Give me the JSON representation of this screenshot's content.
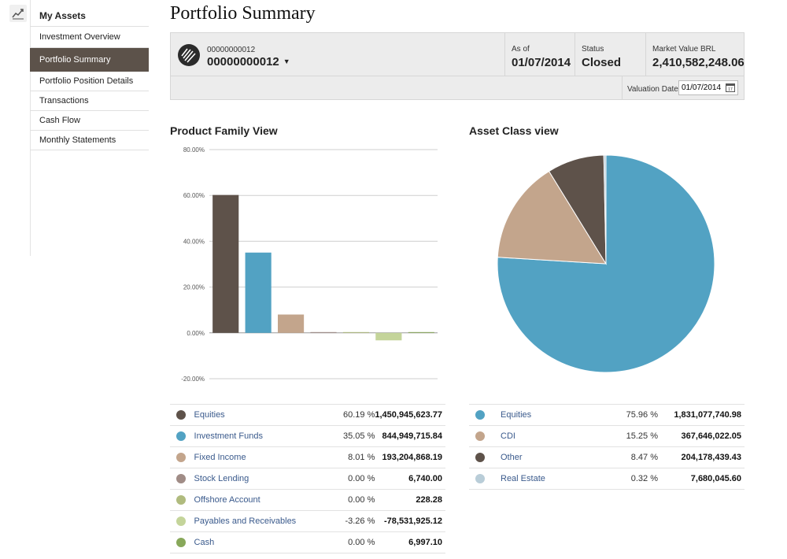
{
  "sidebar": {
    "icon": "chart-icon",
    "heading": "My Assets",
    "items": [
      {
        "label": "Investment Overview"
      },
      {
        "label": "Portfolio Summary",
        "active": true
      },
      {
        "label": "Portfolio Position Details"
      },
      {
        "label": "Transactions"
      },
      {
        "label": "Cash Flow"
      },
      {
        "label": "Monthly Statements"
      }
    ]
  },
  "page": {
    "title": "Portfolio Summary"
  },
  "account": {
    "number_small": "00000000012",
    "number": "00000000012",
    "as_of_label": "As of",
    "as_of": "01/07/2014",
    "status_label": "Status",
    "status": "Closed",
    "market_value_label": "Market Value BRL",
    "market_value": "2,410,582,248.06",
    "valuation_label": "Valuation Date",
    "valuation_date": "01/07/2014"
  },
  "product_view": {
    "title": "Product Family View",
    "rows": [
      {
        "name": "Equities",
        "pct": "60.19 %",
        "value": "1,450,945,623.77",
        "color": "#5e524a"
      },
      {
        "name": "Investment Funds",
        "pct": "35.05 %",
        "value": "844,949,715.84",
        "color": "#52a2c3"
      },
      {
        "name": "Fixed Income",
        "pct": "8.01 %",
        "value": "193,204,868.19",
        "color": "#c3a58c"
      },
      {
        "name": "Stock Lending",
        "pct": "0.00 %",
        "value": "6,740.00",
        "color": "#a08c86"
      },
      {
        "name": "Offshore Account",
        "pct": "0.00 %",
        "value": "228.28",
        "color": "#b0bb7e"
      },
      {
        "name": "Payables and Receivables",
        "pct": "-3.26 %",
        "value": "-78,531,925.12",
        "color": "#c4d49a"
      },
      {
        "name": "Cash",
        "pct": "0.00 %",
        "value": "6,997.10",
        "color": "#88a85a"
      }
    ]
  },
  "asset_view": {
    "title": "Asset Class view",
    "rows": [
      {
        "name": "Equities",
        "pct": "75.96 %",
        "value": "1,831,077,740.98",
        "color": "#52a2c3"
      },
      {
        "name": "CDI",
        "pct": "15.25 %",
        "value": "367,646,022.05",
        "color": "#c3a58c"
      },
      {
        "name": "Other",
        "pct": "8.47 %",
        "value": "204,178,439.43",
        "color": "#5e524a"
      },
      {
        "name": "Real Estate",
        "pct": "0.32 %",
        "value": "7,680,045.60",
        "color": "#b9cdd8"
      }
    ]
  },
  "chart_data": [
    {
      "type": "bar",
      "title": "Product Family View",
      "categories": [
        "Equities",
        "Investment Funds",
        "Fixed Income",
        "Stock Lending",
        "Offshore Account",
        "Payables and Receivables",
        "Cash"
      ],
      "values": [
        60.19,
        35.05,
        8.01,
        0.0,
        0.0,
        -3.26,
        0.0
      ],
      "colors": [
        "#5e524a",
        "#52a2c3",
        "#c3a58c",
        "#a08c86",
        "#b0bb7e",
        "#c4d49a",
        "#88a85a"
      ],
      "ylim": [
        -20,
        80
      ],
      "yticks": [
        80,
        60,
        40,
        20,
        0,
        -20
      ],
      "ytick_labels": [
        "80.00%",
        "60.00%",
        "40.00%",
        "20.00%",
        "0.00%",
        "-20.00%"
      ],
      "grid": true
    },
    {
      "type": "pie",
      "title": "Asset Class view",
      "labels": [
        "Equities",
        "CDI",
        "Other",
        "Real Estate"
      ],
      "values": [
        75.96,
        15.25,
        8.47,
        0.32
      ],
      "colors": [
        "#52a2c3",
        "#c3a58c",
        "#5e524a",
        "#b9cdd8"
      ]
    }
  ]
}
